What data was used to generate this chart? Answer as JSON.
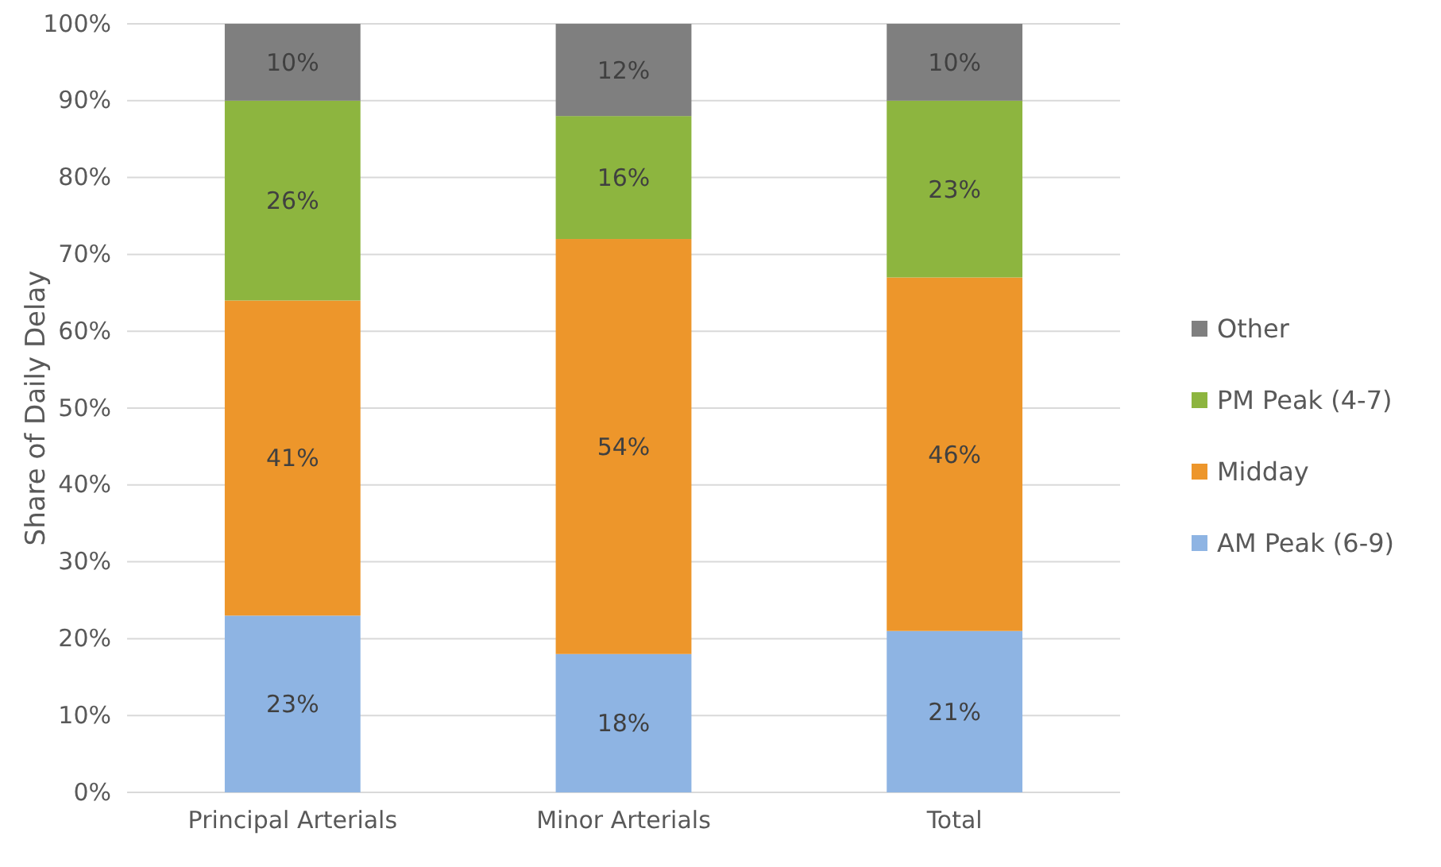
{
  "chart_data": {
    "type": "bar",
    "stacked": true,
    "ylabel": "Share of Daily Delay",
    "categories": [
      "Principal Arterials",
      "Minor Arterials",
      "Total"
    ],
    "series": [
      {
        "name": "AM Peak (6-9)",
        "color": "#8eb4e3",
        "values": [
          23,
          18,
          21
        ],
        "value_labels": [
          "23%",
          "18%",
          "21%"
        ]
      },
      {
        "name": "Midday",
        "color": "#ed962b",
        "values": [
          41,
          54,
          46
        ],
        "value_labels": [
          "41%",
          "54%",
          "46%"
        ]
      },
      {
        "name": "PM Peak (4-7)",
        "color": "#8db53f",
        "values": [
          26,
          16,
          23
        ],
        "value_labels": [
          "26%",
          "16%",
          "23%"
        ]
      },
      {
        "name": "Other",
        "color": "#7f7f7f",
        "values": [
          10,
          12,
          10
        ],
        "value_labels": [
          "10%",
          "12%",
          "10%"
        ]
      }
    ],
    "ylim": [
      0,
      100
    ],
    "yticks": [
      {
        "value": 0,
        "label": "0%"
      },
      {
        "value": 10,
        "label": "10%"
      },
      {
        "value": 20,
        "label": "20%"
      },
      {
        "value": 30,
        "label": "30%"
      },
      {
        "value": 40,
        "label": "40%"
      },
      {
        "value": 50,
        "label": "50%"
      },
      {
        "value": 60,
        "label": "60%"
      },
      {
        "value": 70,
        "label": "70%"
      },
      {
        "value": 80,
        "label": "80%"
      },
      {
        "value": 90,
        "label": "90%"
      },
      {
        "value": 100,
        "label": "100%"
      }
    ],
    "grid": "y",
    "legend": "right"
  }
}
